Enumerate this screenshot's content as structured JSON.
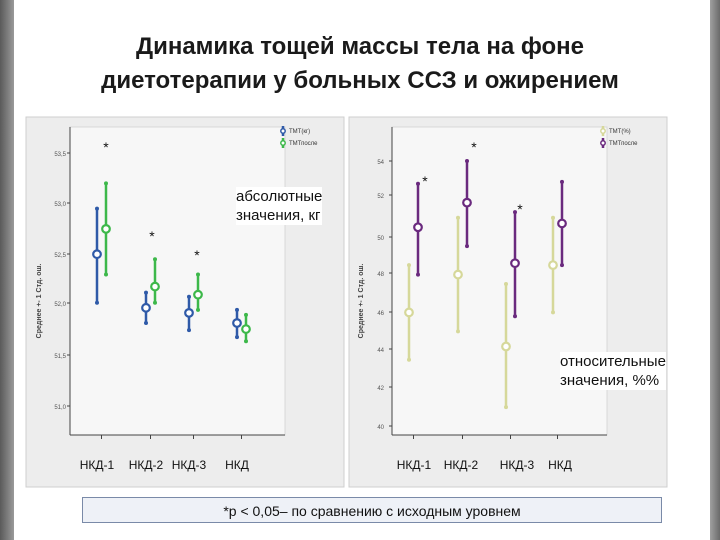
{
  "slide": {
    "title_lines": [
      "Динамика тощей массы тела на фоне",
      "диетотерапии у больных ССЗ и ожирением"
    ],
    "annotation_left_lines": [
      "абсолютные",
      "значения, кг"
    ],
    "annotation_right_lines": [
      "относительные",
      "значения, %%"
    ],
    "footnote": "*р < 0,05– по сравнению с исходным уровнем"
  },
  "colors": {
    "blue": "#2f5aa8",
    "green": "#3db84a",
    "khaki": "#d6d89a",
    "purple": "#6a2a7e"
  },
  "chart_data": [
    {
      "type": "errorbar",
      "categories": [
        "НКД-1",
        "НКД-2",
        "НКД-3",
        "НКД"
      ],
      "ylabel": "Среднее +- 1 Стд. ош.",
      "yticks": [
        "53,5",
        "53,0",
        "52,5",
        "52,0",
        "51,5",
        "51,0"
      ],
      "ylim": [
        50.7,
        53.7
      ],
      "legend": [
        "ТМТ(кг)",
        "ТМТпосле"
      ],
      "series": [
        {
          "name": "ТМТ(кг)",
          "color": "blue",
          "mean": [
            52.5,
            51.97,
            51.92,
            51.82
          ],
          "lower": [
            52.02,
            51.82,
            51.75,
            51.68
          ],
          "upper": [
            52.95,
            52.12,
            52.08,
            51.95
          ]
        },
        {
          "name": "ТМТпосле",
          "color": "green",
          "mean": [
            52.75,
            52.18,
            52.1,
            51.76
          ],
          "lower": [
            52.3,
            52.02,
            51.95,
            51.64
          ],
          "upper": [
            53.2,
            52.45,
            52.3,
            51.9
          ]
        }
      ],
      "significance": [
        "*",
        "*",
        "*",
        ""
      ]
    },
    {
      "type": "errorbar",
      "categories": [
        "НКД-1",
        "НКД-2",
        "НКД-3",
        "НКД"
      ],
      "ylabel": "Среднее +- 1 Стд. ош.",
      "yticks": [
        "54",
        "52",
        "50",
        "48",
        "46",
        "44",
        "42",
        "40"
      ],
      "ylim": [
        39.5,
        54.5
      ],
      "legend": [
        "ТМТ(%)",
        "ТМТпосле"
      ],
      "series": [
        {
          "name": "ТМТ(%)",
          "color": "khaki",
          "mean": [
            46.0,
            48.0,
            44.2,
            48.5
          ],
          "lower": [
            43.5,
            45.0,
            41.0,
            46.0
          ],
          "upper": [
            48.5,
            51.0,
            47.5,
            51.0
          ]
        },
        {
          "name": "ТМТпосле",
          "color": "purple",
          "mean": [
            50.5,
            51.8,
            48.6,
            50.7
          ],
          "lower": [
            48.0,
            49.5,
            45.8,
            48.5
          ],
          "upper": [
            52.8,
            54.0,
            51.3,
            52.9
          ]
        }
      ],
      "significance": [
        "*",
        "*",
        "*",
        ""
      ]
    }
  ]
}
